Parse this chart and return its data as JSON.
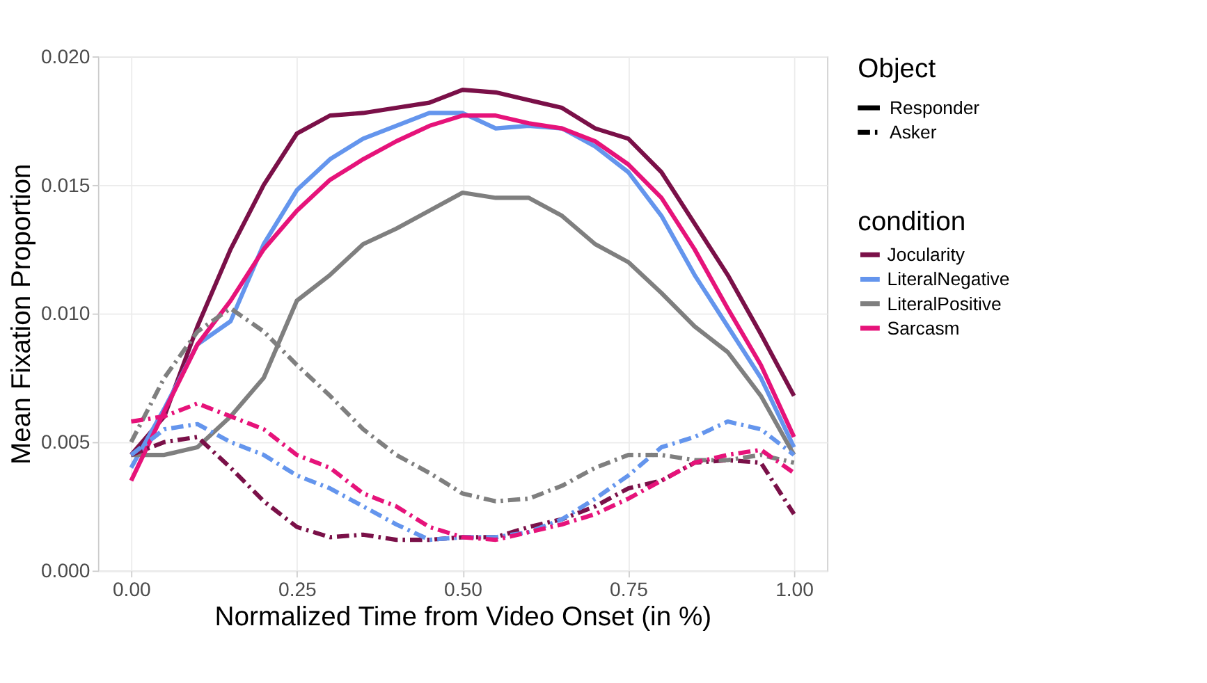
{
  "chart_data": {
    "type": "line",
    "xlabel": "Normalized Time from Video Onset (in %)",
    "ylabel": "Mean Fixation Proportion",
    "legend_title": "condition",
    "annotations": [
      "Object",
      "Responder",
      "Asker"
    ],
    "x": [
      0,
      0.05,
      0.1,
      0.15,
      0.2,
      0.25,
      0.3,
      0.35,
      0.4,
      0.45,
      0.5,
      0.55,
      0.6,
      0.65,
      0.7,
      0.75,
      0.8,
      0.85,
      0.9,
      0.95,
      1.0
    ],
    "series": [
      {
        "name": "Jocularity",
        "color": "#7a1048",
        "line_style": "solid",
        "values": [
          0.0045,
          0.006,
          0.0095,
          0.0125,
          0.015,
          0.017,
          0.0177,
          0.0178,
          0.018,
          0.0182,
          0.0187,
          0.0186,
          0.0183,
          0.018,
          0.0172,
          0.0168,
          0.0155,
          0.0135,
          0.0115,
          0.0092,
          0.0068
        ]
      },
      {
        "name": "LiteralNegative",
        "color": "#6495ed",
        "line_style": "solid",
        "values": [
          0.004,
          0.0063,
          0.0088,
          0.0097,
          0.0127,
          0.0148,
          0.016,
          0.0168,
          0.0173,
          0.0178,
          0.0178,
          0.0172,
          0.0173,
          0.0172,
          0.0165,
          0.0155,
          0.0138,
          0.0115,
          0.0095,
          0.0075,
          0.0048
        ]
      },
      {
        "name": "LiteralPositive",
        "color": "#7f7f7f",
        "line_style": "solid",
        "values": [
          0.0045,
          0.0045,
          0.0048,
          0.006,
          0.0075,
          0.0105,
          0.0115,
          0.0127,
          0.0133,
          0.014,
          0.0147,
          0.0145,
          0.0145,
          0.0138,
          0.0127,
          0.012,
          0.0108,
          0.0095,
          0.0085,
          0.0068,
          0.0045
        ]
      },
      {
        "name": "Sarcasm",
        "color": "#e6137a",
        "line_style": "solid",
        "values": [
          0.0035,
          0.0062,
          0.0088,
          0.0105,
          0.0125,
          0.014,
          0.0152,
          0.016,
          0.0167,
          0.0173,
          0.0177,
          0.0177,
          0.0174,
          0.0172,
          0.0167,
          0.0158,
          0.0145,
          0.0125,
          0.0102,
          0.008,
          0.0052
        ]
      },
      {
        "color": "#7a1048",
        "line_style": "dashed",
        "values": [
          0.0045,
          0.005,
          0.0052,
          0.004,
          0.0027,
          0.0017,
          0.0013,
          0.0014,
          0.0012,
          0.0012,
          0.0013,
          0.0013,
          0.0017,
          0.002,
          0.0025,
          0.0032,
          0.0035,
          0.0042,
          0.0043,
          0.0042,
          0.0022
        ]
      },
      {
        "color": "#6495ed",
        "line_style": "dashed",
        "values": [
          0.0045,
          0.0055,
          0.0057,
          0.005,
          0.0045,
          0.0037,
          0.0032,
          0.0025,
          0.0018,
          0.0012,
          0.0013,
          0.0013,
          0.0015,
          0.002,
          0.0028,
          0.0037,
          0.0048,
          0.0052,
          0.0058,
          0.0055,
          0.0045
        ]
      },
      {
        "color": "#7f7f7f",
        "line_style": "dashed",
        "values": [
          0.005,
          0.0075,
          0.0093,
          0.0102,
          0.0093,
          0.008,
          0.0068,
          0.0055,
          0.0045,
          0.0038,
          0.003,
          0.0027,
          0.0028,
          0.0033,
          0.004,
          0.0045,
          0.0045,
          0.0043,
          0.0043,
          0.0045,
          0.0042
        ]
      },
      {
        "color": "#e6137a",
        "line_style": "dashed",
        "values": [
          0.0058,
          0.006,
          0.0065,
          0.006,
          0.0055,
          0.0045,
          0.004,
          0.003,
          0.0025,
          0.0017,
          0.0013,
          0.0012,
          0.0015,
          0.0018,
          0.0022,
          0.0028,
          0.0035,
          0.0042,
          0.0045,
          0.0047,
          0.0038
        ]
      }
    ],
    "xlim": [
      -0.05,
      1.05
    ],
    "xticks": [
      {
        "value": 0,
        "label": "0.00"
      },
      {
        "value": 0.25,
        "label": "0.25"
      },
      {
        "value": 0.5,
        "label": "0.50"
      },
      {
        "value": 0.75,
        "label": "0.75"
      },
      {
        "value": 1,
        "label": "1.00"
      }
    ],
    "ylim": [
      0,
      0.02
    ],
    "yticks": [
      {
        "value": 0,
        "label": "0.000"
      },
      {
        "value": 0.005,
        "label": "0.005"
      },
      {
        "value": 0.01,
        "label": "0.010"
      },
      {
        "value": 0.015,
        "label": "0.015"
      },
      {
        "value": 0.02,
        "label": "0.020"
      }
    ],
    "grid": true,
    "legend": "right",
    "marker": "none"
  }
}
